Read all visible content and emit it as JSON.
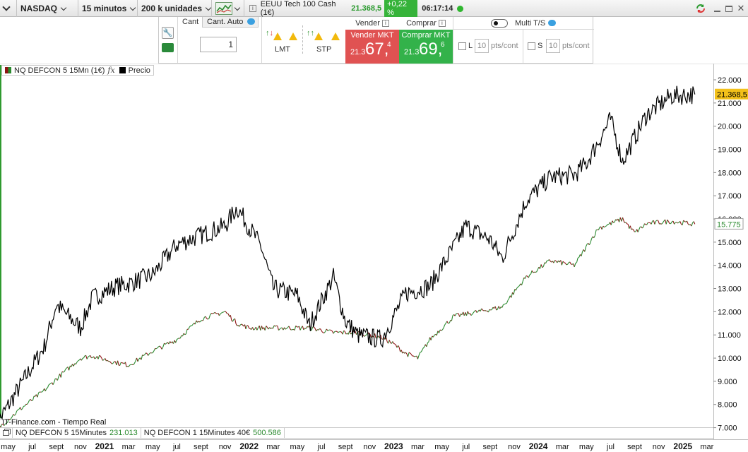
{
  "toolbar": {
    "market": "NASDAQ",
    "timeframe": "15 minutos",
    "units": "200 k unidades",
    "instrument": "EEUU Tech 100 Cash (1€)",
    "price": "21.368,5",
    "change_pct": "+0,22 %",
    "time": "06:17:14"
  },
  "panel": {
    "cant_label": "Cant",
    "cant_auto_label": "Cant. Auto",
    "quantity": "1",
    "lmt_label": "LMT",
    "stp_label": "STP",
    "vender_label": "Vender",
    "comprar_label": "Comprar",
    "sell_label": "Vender MKT",
    "sell_prefix": "21.3",
    "sell_big": "67,",
    "sell_sup": "4",
    "buy_label": "Comprar MKT",
    "buy_prefix": "21.3",
    "buy_big": "69,",
    "buy_sup": "6",
    "multi_label": "Multi T/S",
    "l_label": "L",
    "s_label": "S",
    "pts_value": "10",
    "pts_unit": "pts/cont"
  },
  "legend": {
    "strategy": "NQ DEFCON 5 15Mn (1€)",
    "fx": "fx",
    "price_label": "Precio"
  },
  "source": "IT-Finance.com - Tiempo Real",
  "bottom_tabs": [
    {
      "name": "NQ DEFCON 5 15Minutes",
      "value": "231.013"
    },
    {
      "name": "NQ DEFCON 1 15Minutes 40€",
      "value": "500.586"
    }
  ],
  "colors": {
    "price_line": "#000000",
    "equity_up": "#2a8a2e",
    "equity_down": "#8e1414",
    "baseline": "#1a1a8c",
    "price_tag": "#f2c01a"
  },
  "chart_data": {
    "type": "line",
    "y_ticks": [
      "22.000",
      "21.000",
      "20.000",
      "19.000",
      "18.000",
      "17.000",
      "16.000",
      "15.000",
      "14.000",
      "13.000",
      "12.000",
      "11.000",
      "10.000",
      "9.000",
      "8.000",
      "7.000"
    ],
    "ylim": [
      6500,
      22700
    ],
    "x_ticks": [
      "may",
      "jul",
      "sept",
      "nov",
      "2021",
      "mar",
      "may",
      "jul",
      "sept",
      "nov",
      "2022",
      "mar",
      "may",
      "jul",
      "sept",
      "nov",
      "2023",
      "mar",
      "may",
      "jul",
      "sept",
      "nov",
      "2024",
      "mar",
      "may",
      "jul",
      "sept",
      "nov",
      "2025",
      "mar"
    ],
    "last_price_label": "21.368,5",
    "last_equity_label": "15.775",
    "baseline_value": 6900,
    "series": [
      {
        "name": "Precio",
        "x": [
          "2020-04",
          "2020-06",
          "2020-08",
          "2020-09",
          "2020-11",
          "2020-12",
          "2021-02",
          "2021-03",
          "2021-05",
          "2021-07",
          "2021-09",
          "2021-11",
          "2021-12",
          "2022-02",
          "2022-03",
          "2022-05",
          "2022-06",
          "2022-08",
          "2022-09",
          "2022-10",
          "2022-12",
          "2023-02",
          "2023-04",
          "2023-06",
          "2023-07",
          "2023-09",
          "2023-10",
          "2023-12",
          "2024-02",
          "2024-04",
          "2024-05",
          "2024-07",
          "2024-08",
          "2024-10",
          "2024-12",
          "2025-02"
        ],
        "values": [
          7100,
          8800,
          10500,
          12300,
          11300,
          12600,
          13100,
          13200,
          13600,
          14900,
          15300,
          15700,
          16500,
          14800,
          13000,
          12700,
          11400,
          13500,
          11600,
          11000,
          10800,
          12800,
          13100,
          14800,
          15700,
          15100,
          14300,
          16800,
          17800,
          17900,
          18400,
          20300,
          18500,
          20500,
          21300,
          21368.5
        ]
      },
      {
        "name": "NQ DEFCON 5 15Mn (1€)",
        "x": [
          "2020-04",
          "2020-06",
          "2020-08",
          "2020-09",
          "2020-11",
          "2020-12",
          "2021-02",
          "2021-03",
          "2021-05",
          "2021-07",
          "2021-09",
          "2021-11",
          "2021-12",
          "2022-01",
          "2022-06",
          "2022-08",
          "2022-10",
          "2022-12",
          "2023-01",
          "2023-02",
          "2023-03",
          "2023-04",
          "2023-06",
          "2023-08",
          "2023-10",
          "2023-12",
          "2024-02",
          "2024-04",
          "2024-06",
          "2024-08",
          "2024-09",
          "2024-10",
          "2024-12",
          "2025-02"
        ],
        "values": [
          6900,
          7800,
          8600,
          9100,
          10000,
          10100,
          9800,
          9700,
          10300,
          10800,
          11700,
          12000,
          11500,
          11300,
          11300,
          11100,
          11100,
          10900,
          10600,
          10200,
          10000,
          10800,
          11800,
          12000,
          12200,
          13500,
          14200,
          14000,
          15600,
          16000,
          15400,
          15800,
          15900,
          15775
        ]
      }
    ]
  }
}
